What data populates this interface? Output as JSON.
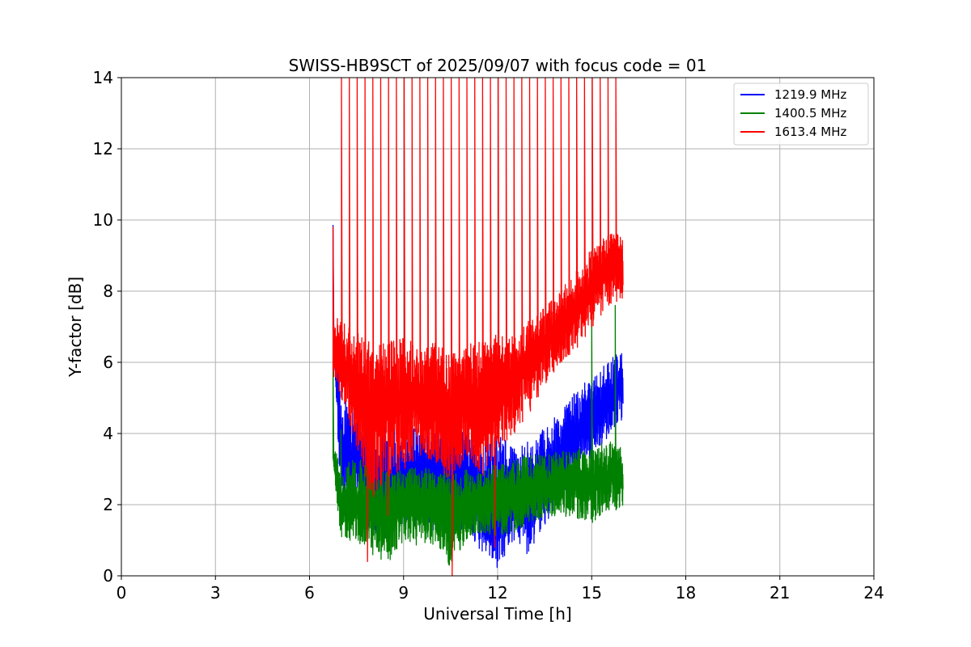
{
  "chart_data": {
    "type": "line",
    "title": "SWISS-HB9SCT of 2025/09/07 with focus code = 01",
    "xlabel": "Universal Time [h]",
    "ylabel": "Y-factor [dB]",
    "xlim": [
      0,
      24
    ],
    "ylim": [
      0,
      14
    ],
    "xticks": [
      0,
      3,
      6,
      9,
      12,
      15,
      18,
      21,
      24
    ],
    "yticks": [
      0,
      2,
      4,
      6,
      8,
      10,
      12,
      14
    ],
    "grid": true,
    "legend_position": "top-right",
    "data_note": "Noisy time series from about 6.7 h to 16.0 h UT; values below are estimated envelope (min/max) per time bin plus narrow spikes.",
    "series": [
      {
        "name": "1219.9 MHz",
        "color": "#0000ff",
        "x": [
          6.75,
          7.0,
          7.5,
          8.0,
          8.5,
          9.0,
          9.5,
          10.0,
          10.5,
          11.0,
          11.5,
          12.0,
          12.5,
          13.0,
          13.5,
          14.0,
          14.5,
          15.0,
          15.5,
          16.0
        ],
        "min": [
          6.8,
          2.0,
          1.6,
          1.2,
          1.0,
          1.4,
          1.3,
          1.2,
          1.0,
          1.4,
          0.6,
          0.2,
          1.0,
          0.5,
          1.4,
          2.2,
          2.8,
          3.2,
          3.8,
          4.4
        ],
        "max": [
          7.3,
          5.2,
          4.8,
          4.6,
          4.2,
          4.0,
          4.2,
          4.6,
          4.2,
          4.0,
          3.8,
          4.0,
          3.6,
          3.8,
          4.2,
          4.6,
          5.2,
          5.6,
          6.0,
          6.4
        ],
        "spikes": [
          {
            "x": 6.75,
            "y": 9.85
          }
        ]
      },
      {
        "name": "1400.5 MHz",
        "color": "#008000",
        "x": [
          6.75,
          7.0,
          7.5,
          8.0,
          8.5,
          9.0,
          9.5,
          10.0,
          10.5,
          11.0,
          11.5,
          12.0,
          12.5,
          13.0,
          13.5,
          14.0,
          14.5,
          15.0,
          15.5,
          16.0
        ],
        "min": [
          3.1,
          1.1,
          0.9,
          0.6,
          0.3,
          1.0,
          0.8,
          0.9,
          0.2,
          1.0,
          1.2,
          1.1,
          1.2,
          1.4,
          1.6,
          1.7,
          1.6,
          1.5,
          1.8,
          1.9
        ],
        "max": [
          3.7,
          3.1,
          3.3,
          3.2,
          3.0,
          3.0,
          3.1,
          3.0,
          2.9,
          3.0,
          2.9,
          3.2,
          3.3,
          3.4,
          3.4,
          3.5,
          3.6,
          3.6,
          3.8,
          3.6
        ],
        "spikes": [
          {
            "x": 6.75,
            "y": 6.1
          },
          {
            "x": 7.0,
            "y": 4.1
          },
          {
            "x": 15.0,
            "y": 7.4
          },
          {
            "x": 15.75,
            "y": 7.6
          }
        ]
      },
      {
        "name": "1613.4 MHz",
        "color": "#ff0000",
        "x": [
          6.75,
          7.0,
          7.5,
          8.0,
          8.5,
          9.0,
          9.5,
          10.0,
          10.5,
          11.0,
          11.5,
          12.0,
          12.5,
          13.0,
          13.5,
          14.0,
          14.5,
          15.0,
          15.5,
          16.0
        ],
        "min": [
          5.6,
          5.0,
          3.6,
          2.2,
          2.8,
          3.0,
          3.4,
          3.2,
          2.6,
          3.4,
          2.8,
          3.6,
          4.0,
          4.6,
          5.4,
          6.0,
          6.4,
          7.0,
          7.6,
          7.8
        ],
        "max": [
          7.3,
          7.2,
          7.0,
          6.4,
          6.6,
          6.8,
          6.4,
          6.6,
          6.2,
          6.6,
          6.6,
          6.8,
          6.8,
          7.2,
          7.6,
          8.0,
          8.6,
          9.2,
          9.6,
          9.6
        ],
        "dips": [
          {
            "x": 7.85,
            "y": 0.4
          },
          {
            "x": 8.5,
            "y": 1.7
          },
          {
            "x": 10.55,
            "y": 0.0
          },
          {
            "x": 11.9,
            "y": 0.8
          }
        ],
        "spikes": [
          {
            "x": 6.75,
            "y": 9.8
          },
          {
            "x": 7.02,
            "y": 14
          },
          {
            "x": 7.27,
            "y": 14
          },
          {
            "x": 7.52,
            "y": 14
          },
          {
            "x": 7.77,
            "y": 14
          },
          {
            "x": 8.02,
            "y": 14
          },
          {
            "x": 8.27,
            "y": 14
          },
          {
            "x": 8.52,
            "y": 14
          },
          {
            "x": 8.77,
            "y": 14
          },
          {
            "x": 9.02,
            "y": 14
          },
          {
            "x": 9.27,
            "y": 14
          },
          {
            "x": 9.52,
            "y": 14
          },
          {
            "x": 9.77,
            "y": 14
          },
          {
            "x": 10.02,
            "y": 14
          },
          {
            "x": 10.27,
            "y": 14
          },
          {
            "x": 10.52,
            "y": 14
          },
          {
            "x": 10.77,
            "y": 14
          },
          {
            "x": 11.02,
            "y": 14
          },
          {
            "x": 11.27,
            "y": 14
          },
          {
            "x": 11.52,
            "y": 14
          },
          {
            "x": 11.77,
            "y": 14
          },
          {
            "x": 12.02,
            "y": 14
          },
          {
            "x": 12.27,
            "y": 14
          },
          {
            "x": 12.52,
            "y": 14
          },
          {
            "x": 12.77,
            "y": 14
          },
          {
            "x": 13.02,
            "y": 14
          },
          {
            "x": 13.27,
            "y": 14
          },
          {
            "x": 13.52,
            "y": 14
          },
          {
            "x": 13.77,
            "y": 14
          },
          {
            "x": 14.02,
            "y": 14
          },
          {
            "x": 14.27,
            "y": 14
          },
          {
            "x": 14.52,
            "y": 14
          },
          {
            "x": 14.77,
            "y": 14
          },
          {
            "x": 15.02,
            "y": 14
          },
          {
            "x": 15.27,
            "y": 14
          },
          {
            "x": 15.52,
            "y": 14
          },
          {
            "x": 15.77,
            "y": 14
          }
        ]
      }
    ]
  }
}
